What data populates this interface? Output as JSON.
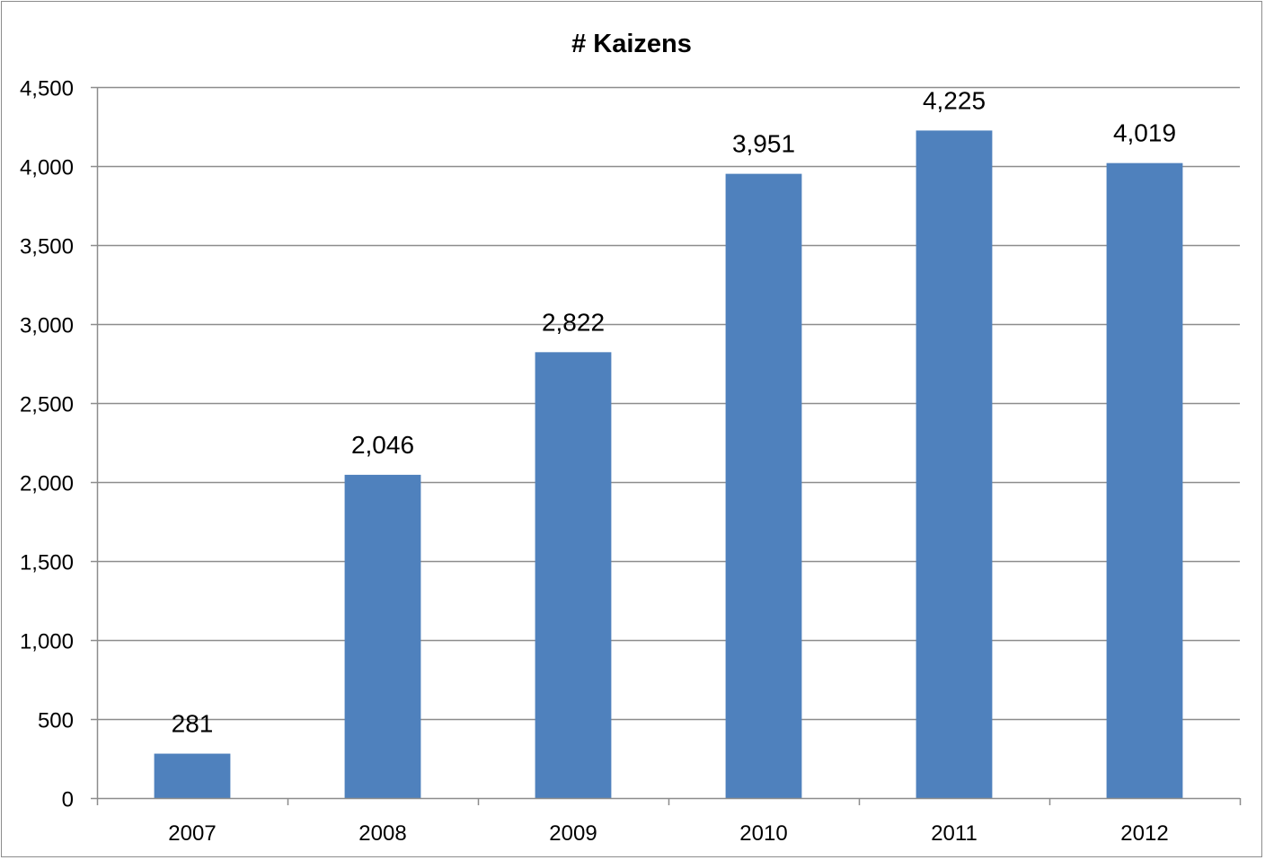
{
  "chart_data": {
    "type": "bar",
    "title": "# Kaizens",
    "xlabel": "",
    "ylabel": "",
    "categories": [
      "2007",
      "2008",
      "2009",
      "2010",
      "2011",
      "2012"
    ],
    "values": [
      281,
      2046,
      2822,
      3951,
      4225,
      4019
    ],
    "data_labels": [
      "281",
      "2,046",
      "2,822",
      "3,951",
      "4,225",
      "4,019"
    ],
    "ylim": [
      0,
      4500
    ],
    "yticks": [
      0,
      500,
      1000,
      1500,
      2000,
      2500,
      3000,
      3500,
      4000,
      4500
    ],
    "ytick_labels": [
      "0",
      "500",
      "1,000",
      "1,500",
      "2,000",
      "2,500",
      "3,000",
      "3,500",
      "4,000",
      "4,500"
    ],
    "grid": true,
    "legend": "none",
    "colors": {
      "bar": "#4f81bd",
      "grid": "#8c8c8c",
      "axis": "#8c8c8c",
      "border": "#8c8c8c"
    }
  }
}
